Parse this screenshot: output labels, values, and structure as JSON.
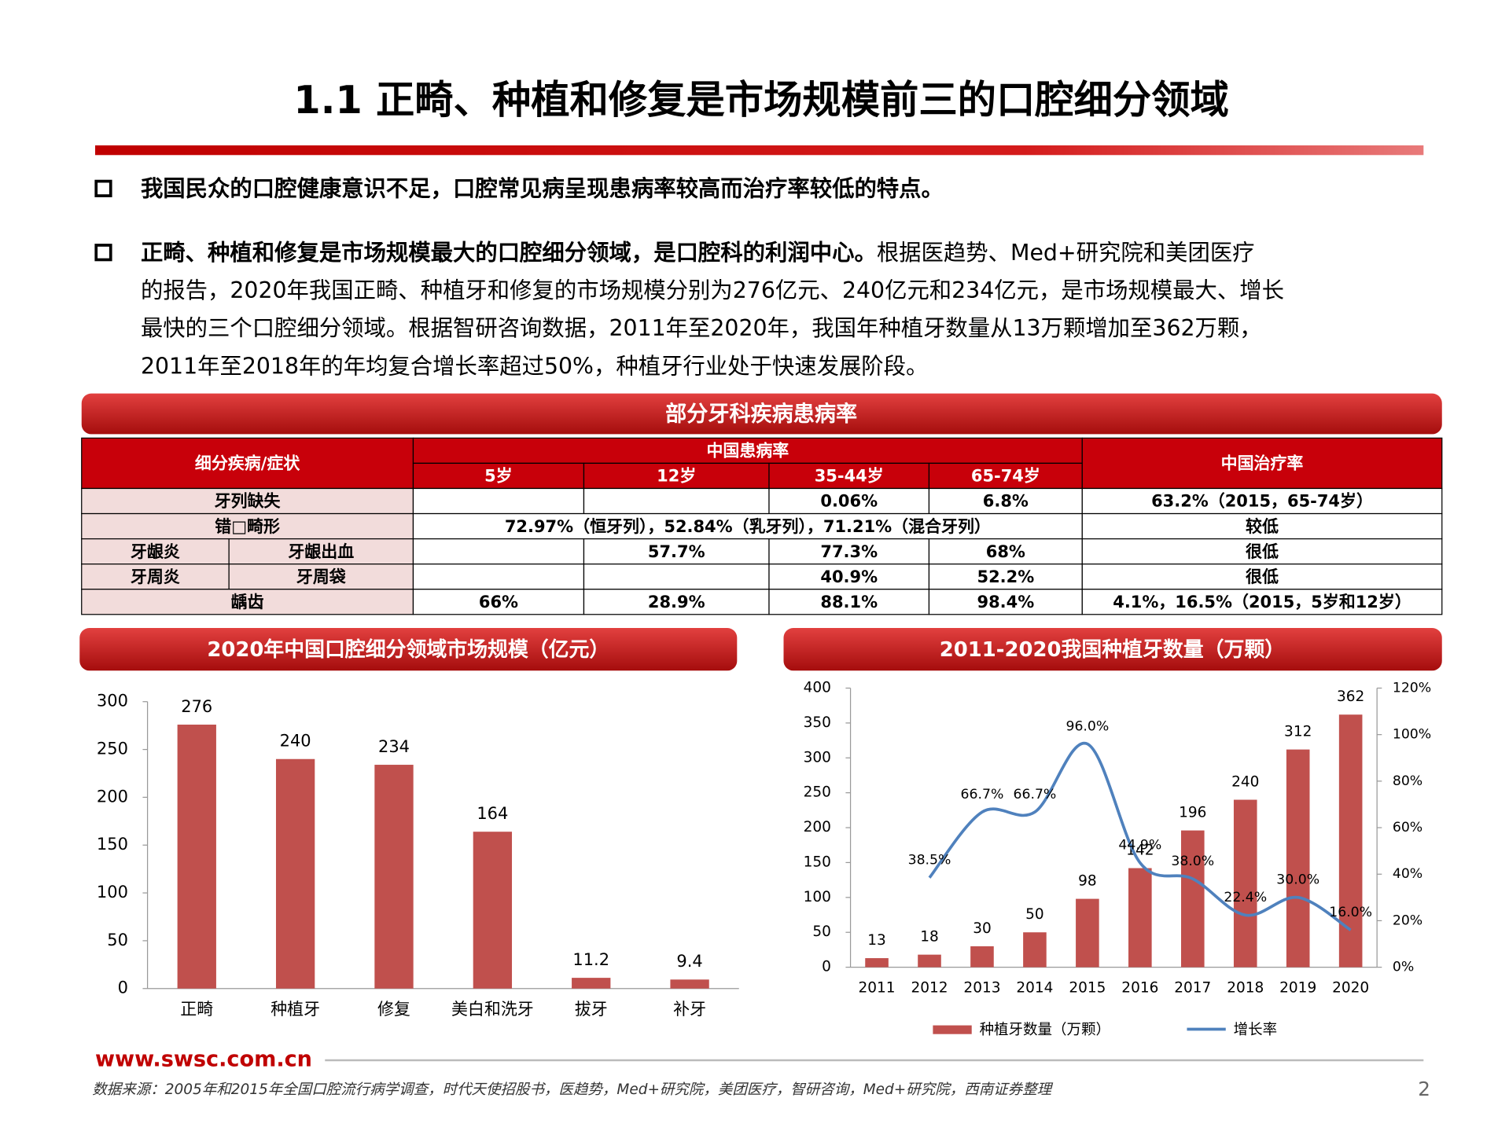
{
  "header": {
    "title": "1.1 正畸、种植和修复是市场规模前三的口腔细分领域"
  },
  "bullets": [
    {
      "bold": "我国民众的口腔健康意识不足，口腔常见病呈现患病率较高而治疗率较低的特点。"
    },
    {
      "bold": "正畸、种植和修复是市场规模最大的口腔细分领域，是口腔科的利润中心。",
      "lines": [
        "根据医趋势、Med+研究院和美团医疗",
        "的报告，2020年我国正畸、种植牙和修复的市场规模分别为276亿元、240亿元和234亿元，是市场规模最大、增长",
        "最快的三个口腔细分领域。根据智研咨询数据，2011年至2020年，我国年种植牙数量从13万颗增加至362万颗，",
        "2011年至2018年的年均复合增长率超过50%，种植牙行业处于快速发展阶段。"
      ]
    }
  ],
  "table": {
    "title": "部分牙科疾病患病率",
    "header": {
      "disease": "细分疾病/症状",
      "prevalence": "中国患病率",
      "ages": [
        "5岁",
        "12岁",
        "35-44岁",
        "65-74岁"
      ],
      "treatment": "中国治疗率"
    },
    "rows": [
      {
        "name": "牙列缺失",
        "values": [
          null,
          null,
          "0.06%",
          "6.8%"
        ],
        "treatment": "63.2%（2015，65-74岁）"
      },
      {
        "name": "错□畸形",
        "merged": "72.97%（恒牙列），52.84%（乳牙列），71.21%（混合牙列）",
        "treatment": "较低"
      },
      {
        "name": "牙龈炎",
        "sub": "牙龈出血",
        "values": [
          null,
          "57.7%",
          "77.3%",
          "68%"
        ],
        "treatment": "很低"
      },
      {
        "name": "牙周炎",
        "sub": "牙周袋",
        "values": [
          null,
          null,
          "40.9%",
          "52.2%"
        ],
        "treatment": "很低"
      },
      {
        "name": "龋齿",
        "values": [
          "66%",
          "28.9%",
          "88.1%",
          "98.4%"
        ],
        "treatment": "4.1%，16.5%（2015，5岁和12岁）"
      }
    ]
  },
  "chart_data": [
    {
      "type": "bar",
      "title": "2020年中国口腔细分领域市场规模（亿元）",
      "categories": [
        "正畸",
        "种植牙",
        "修复",
        "美白和洗牙",
        "拔牙",
        "补牙"
      ],
      "values": [
        276,
        240,
        234,
        164,
        11.2,
        9.4
      ],
      "color": "#c0504d",
      "ylim": [
        0,
        300
      ],
      "yticks": [
        0,
        50,
        100,
        150,
        200,
        250,
        300
      ]
    },
    {
      "type": "bar",
      "title": "2011-2020我国种植牙数量（万颗）",
      "categories": [
        "2011",
        "2012",
        "2013",
        "2014",
        "2015",
        "2016",
        "2017",
        "2018",
        "2019",
        "2020"
      ],
      "series": [
        {
          "name": "种植牙数量（万颗）",
          "color": "#c0504d",
          "values": [
            13,
            18,
            30,
            50,
            98,
            142,
            196,
            240,
            312,
            362
          ]
        },
        {
          "name": "增长率",
          "color": "#4f81bd",
          "type": "line",
          "axis": "y2",
          "values": [
            null,
            38.5,
            66.7,
            66.7,
            96.0,
            44.9,
            38.0,
            22.4,
            30.0,
            16.0
          ],
          "value_labels": [
            null,
            "38.5%",
            "66.7%",
            "66.7%",
            "96.0%",
            "44.9%",
            "38.0%",
            "22.4%",
            "30.0%",
            "16.0%"
          ]
        }
      ],
      "ylim": [
        0,
        400
      ],
      "yticks": [
        0,
        50,
        100,
        150,
        200,
        250,
        300,
        350,
        400
      ],
      "y2lim": [
        0,
        120
      ],
      "y2ticks": [
        {
          "value": 0,
          "label": "0%"
        },
        {
          "value": 20,
          "label": "20%"
        },
        {
          "value": 40,
          "label": "40%"
        },
        {
          "value": 60,
          "label": "60%"
        },
        {
          "value": 80,
          "label": "80%"
        },
        {
          "value": 100,
          "label": "100%"
        },
        {
          "value": 120,
          "label": "120%"
        }
      ],
      "legend": "bottom"
    }
  ],
  "footer": {
    "website": "www.swsc.com.cn",
    "source": "数据来源：2005年和2015年全国口腔流行病学调查，时代天使招股书，医趋势，Med+研究院，美团医疗，智研咨询，Med+研究院，西南证券整理",
    "page": "2"
  }
}
